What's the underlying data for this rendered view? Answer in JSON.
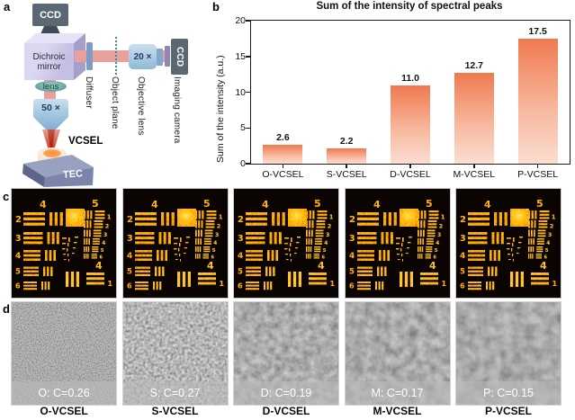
{
  "figure": {
    "panel_labels": {
      "a": "a",
      "b": "b",
      "c": "c",
      "d": "d"
    }
  },
  "diagram": {
    "ccd_top": "CCD",
    "dichroic_mirror": "Dichroic mirror",
    "lens": "lens",
    "objective_50x": "50 ×",
    "vcsel": "VCSEL",
    "tec": "TEC",
    "diffuser": "Diffuser",
    "object_plane": "Object plane",
    "objective_20x": "20 ×",
    "objective_lens": "Objective lens",
    "ccd_right": "CCD",
    "imaging_camera": "Imaging camera"
  },
  "chart_data": {
    "type": "bar",
    "title": "Sum of the intensity of spectral peaks",
    "categories": [
      "O-VCSEL",
      "S-VCSEL",
      "D-VCSEL",
      "M-VCSEL",
      "P-VCSEL"
    ],
    "values": [
      2.6,
      2.2,
      11.0,
      12.7,
      17.5
    ],
    "value_labels": [
      "2.6",
      "2.2",
      "11.0",
      "12.7",
      "17.5"
    ],
    "xlabel": "",
    "ylabel": "Sum of the intensity (a.u.)",
    "ylim": [
      0,
      20
    ],
    "yticks": [
      0,
      5,
      10,
      15,
      20
    ],
    "grid": false,
    "legend": "none",
    "bar_color_top": "#f0794f",
    "bar_color_bottom": "#fcded2"
  },
  "resolution_targets": {
    "count": 5,
    "group_label_top_left": "4",
    "group_label_top_right": "5",
    "group_label_bottom_right": "4",
    "left_element_numbers": [
      "2",
      "3",
      "4",
      "5",
      "6"
    ],
    "right_element_numbers": [
      "1",
      "2",
      "3",
      "4",
      "5",
      "6"
    ],
    "bottom_element_number": "1"
  },
  "speckle_panels": {
    "items": [
      {
        "overlay": "O: C=0.26",
        "caption": "O-VCSEL"
      },
      {
        "overlay": "S: C=0.27",
        "caption": "S-VCSEL"
      },
      {
        "overlay": "D: C=0.19",
        "caption": "D-VCSEL"
      },
      {
        "overlay": "M: C=0.17",
        "caption": "M-VCSEL"
      },
      {
        "overlay": "P: C=0.15",
        "caption": "P-VCSEL"
      }
    ]
  }
}
